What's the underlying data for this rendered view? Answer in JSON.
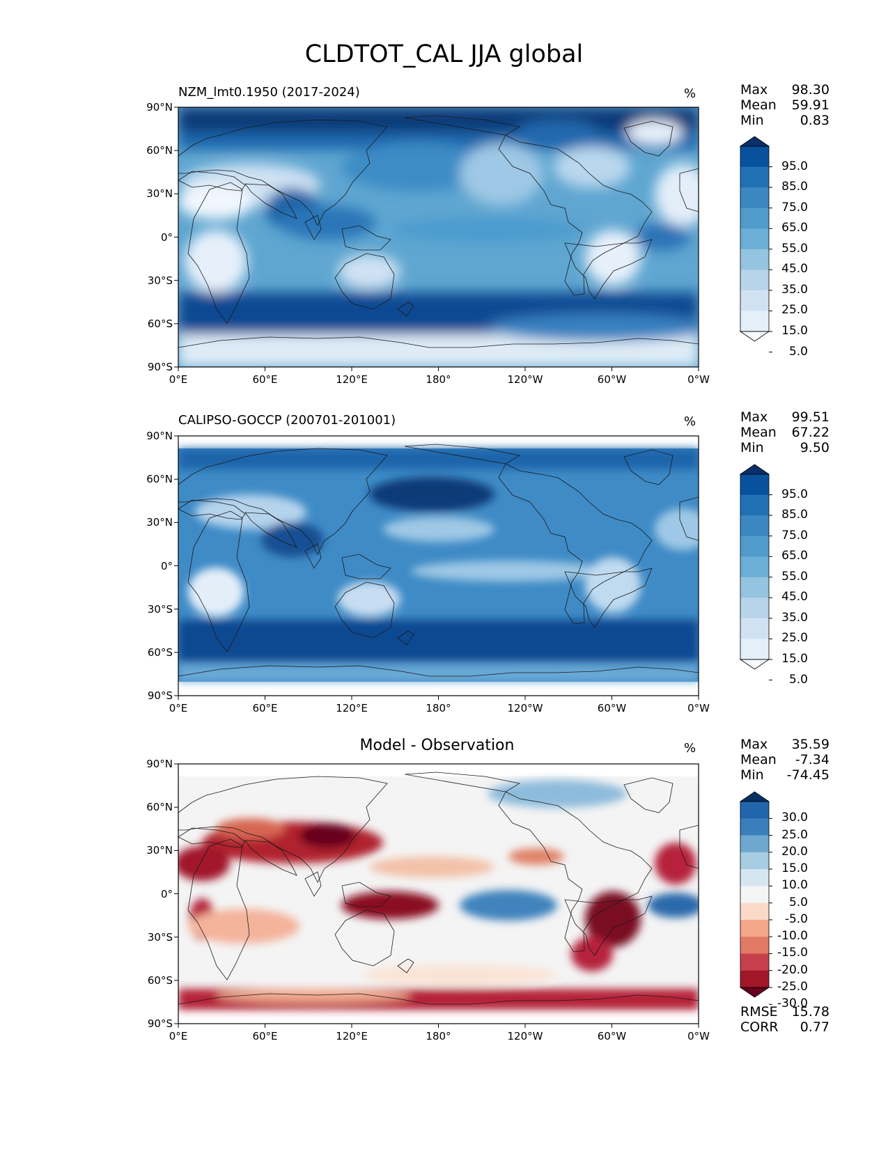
{
  "figure": {
    "title": "CLDTOT_CAL JJA global"
  },
  "axes": {
    "yticks": [
      "90°N",
      "60°N",
      "30°N",
      "0°",
      "30°S",
      "60°S",
      "90°S"
    ],
    "xticks": [
      "0°E",
      "60°E",
      "120°E",
      "180°",
      "120°W",
      "60°W",
      "0°W"
    ]
  },
  "panels": [
    {
      "title": "NZM_lmt0.1950 (2017-2024)",
      "units": "%",
      "stats": [
        {
          "label": "Max",
          "value": "98.30"
        },
        {
          "label": "Mean",
          "value": "59.91"
        },
        {
          "label": "Min",
          "value": "0.83"
        }
      ],
      "colorbar": {
        "labels": [
          "95.0",
          "85.0",
          "75.0",
          "65.0",
          "55.0",
          "45.0",
          "35.0",
          "25.0",
          "15.0",
          "5.0"
        ],
        "colors": [
          "#08306b",
          "#08519c",
          "#2171b5",
          "#3a87c2",
          "#4f9bcb",
          "#6baed6",
          "#94c4df",
          "#b7d4ea",
          "#d0e1f2",
          "#e5eff9",
          "#f7fbff"
        ]
      }
    },
    {
      "title": "CALIPSO-GOCCP (200701-201001)",
      "units": "%",
      "stats": [
        {
          "label": "Max",
          "value": "99.51"
        },
        {
          "label": "Mean",
          "value": "67.22"
        },
        {
          "label": "Min",
          "value": "9.50"
        }
      ],
      "colorbar": {
        "labels": [
          "95.0",
          "85.0",
          "75.0",
          "65.0",
          "55.0",
          "45.0",
          "35.0",
          "25.0",
          "15.0",
          "5.0"
        ],
        "colors": [
          "#08306b",
          "#08519c",
          "#2171b5",
          "#3a87c2",
          "#4f9bcb",
          "#6baed6",
          "#94c4df",
          "#b7d4ea",
          "#d0e1f2",
          "#e5eff9",
          "#f7fbff"
        ]
      }
    },
    {
      "title": "Model - Observation",
      "units": "%",
      "stats": [
        {
          "label": "Max",
          "value": "35.59"
        },
        {
          "label": "Mean",
          "value": "-7.34"
        },
        {
          "label": "Min",
          "value": "-74.45"
        }
      ],
      "extra_stats": [
        {
          "label": "RMSE",
          "value": "15.78"
        },
        {
          "label": "CORR",
          "value": "0.77"
        }
      ],
      "colorbar": {
        "labels": [
          "30.0",
          "25.0",
          "20.0",
          "15.0",
          "10.0",
          "5.0",
          "-5.0",
          "-10.0",
          "-15.0",
          "-20.0",
          "-25.0",
          "-30.0"
        ],
        "colors": [
          "#053061",
          "#2166ac",
          "#3a7fbb",
          "#6ea8cf",
          "#a7cde3",
          "#d5e6f0",
          "#f5f5f5",
          "#fbd9c8",
          "#f4a78a",
          "#e07a64",
          "#c6414b",
          "#a11729",
          "#67001f"
        ]
      }
    }
  ]
}
